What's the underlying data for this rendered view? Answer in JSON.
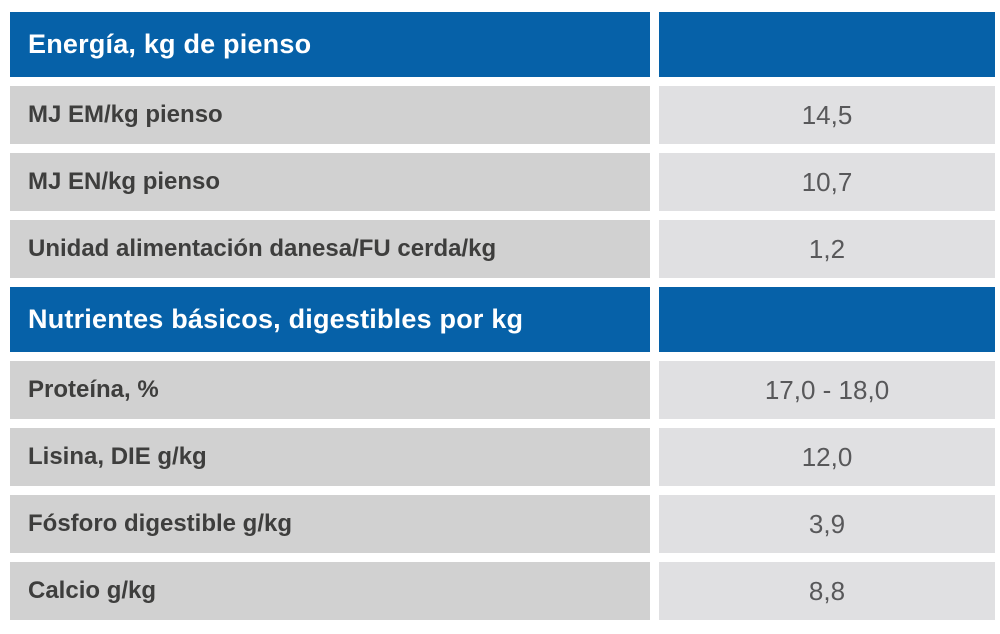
{
  "table": {
    "sections": [
      {
        "header": "Energía, kg de pienso",
        "rows": [
          {
            "label": "MJ EM/kg pienso",
            "value": "14,5"
          },
          {
            "label": "MJ EN/kg pienso",
            "value": "10,7"
          },
          {
            "label": "Unidad alimentación danesa/FU cerda/kg",
            "value": "1,2"
          }
        ]
      },
      {
        "header": "Nutrientes básicos, digestibles por kg",
        "rows": [
          {
            "label": "Proteína, %",
            "value": "17,0 - 18,0"
          },
          {
            "label": "Lisina, DIE g/kg",
            "value": "12,0"
          },
          {
            "label": "Fósforo digestible g/kg",
            "value": "3,9"
          },
          {
            "label": "Calcio g/kg",
            "value": "8,8"
          }
        ]
      }
    ],
    "colors": {
      "header_bg": "#0661a8",
      "header_text": "#ffffff",
      "label_bg": "#d1d1d1",
      "value_bg": "#e0e0e2",
      "label_text": "#3e3e3d",
      "value_text": "#58585a",
      "background": "#ffffff"
    }
  }
}
